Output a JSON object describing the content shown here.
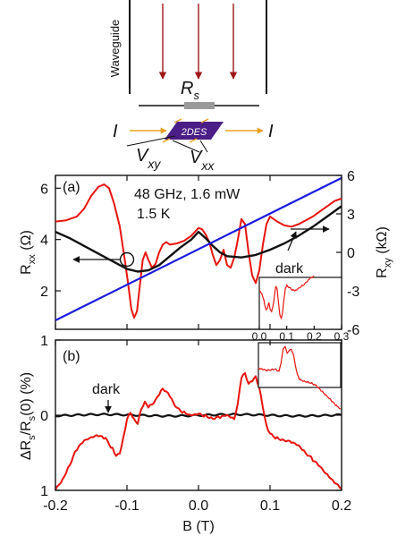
{
  "colors": {
    "measured": "#e8140e",
    "dark": "#111111",
    "hall": "#1a1adf",
    "waveguide_arrow": "#a01818",
    "sample": "#4b1d86",
    "sample_label": "#ffffff",
    "current_arrow": "#e8a020",
    "resistor": "#9a9a9a",
    "axis": "#111111"
  },
  "schematic": {
    "waveguide_label": "Waveguide",
    "resistor_label_main": "R",
    "resistor_label_sub": "s",
    "current_left": "I",
    "current_right": "I",
    "sample_label": "2DES",
    "vxy_main": "V",
    "vxy_sub": "xy",
    "vxx_main": "V",
    "vxx_sub": "xx"
  },
  "panel_a": {
    "label": "(a)",
    "annotation_power": "48 GHz, 1.6 mW",
    "annotation_temp": "1.5 K",
    "dark_label": "dark",
    "ylabel_left_main": "R",
    "ylabel_left_sub": "xx",
    "ylabel_left_unit": " (Ω)",
    "ylabel_right_main": "R",
    "ylabel_right_sub": "xy",
    "ylabel_right_unit": " (kΩ)",
    "left_ticks": [
      "2",
      "4",
      "6"
    ],
    "right_ticks": [
      "-6",
      "-3",
      "0",
      "3",
      "6"
    ],
    "inset_ticks": [
      "0.0",
      "0.1",
      "0.2",
      "0.3"
    ]
  },
  "panel_b": {
    "label": "(b)",
    "dark_label": "dark",
    "ylabel_parts": [
      "ΔR",
      "s",
      "/R",
      "s",
      "(0) (%)"
    ],
    "y_ticks": [
      "1",
      "0",
      "1"
    ]
  },
  "xaxis": {
    "label": "B (T)",
    "ticks": [
      "-0.2",
      "-0.1",
      "0.0",
      "0.1",
      "0.2"
    ]
  },
  "chart_data": [
    {
      "type": "line",
      "panel": "(a)",
      "xlim": [
        -0.2,
        0.2
      ],
      "ylim_left": [
        0.5,
        6.5
      ],
      "ylim_right": [
        -6,
        6
      ],
      "series": [
        {
          "axis": "left",
          "x": [
            -0.2,
            -0.185,
            -0.17,
            -0.16,
            -0.15,
            -0.14,
            -0.132,
            -0.125,
            -0.118,
            -0.11,
            -0.103,
            -0.098,
            -0.094,
            -0.09,
            -0.086,
            -0.082,
            -0.078,
            -0.074,
            -0.07,
            -0.065,
            -0.06,
            -0.055,
            -0.05,
            -0.045,
            -0.04,
            -0.03,
            -0.02,
            -0.01,
            0.0,
            0.005,
            0.01,
            0.015,
            0.02,
            0.025,
            0.03,
            0.035,
            0.04,
            0.045,
            0.05,
            0.055,
            0.06,
            0.065,
            0.07,
            0.075,
            0.08,
            0.085,
            0.09,
            0.095,
            0.1,
            0.11,
            0.12,
            0.13,
            0.14,
            0.15,
            0.16,
            0.17,
            0.18,
            0.19,
            0.2
          ],
          "y": [
            4.7,
            4.75,
            4.9,
            5.2,
            5.7,
            6.05,
            6.15,
            6.0,
            5.4,
            4.5,
            3.2,
            2.2,
            1.3,
            0.95,
            1.2,
            2.2,
            3.2,
            3.5,
            3.2,
            2.9,
            3.05,
            3.5,
            3.8,
            3.9,
            3.8,
            3.85,
            3.95,
            4.15,
            4.45,
            4.4,
            4.2,
            3.9,
            3.4,
            3.0,
            3.2,
            3.6,
            3.0,
            2.9,
            3.3,
            4.0,
            4.8,
            4.6,
            3.5,
            2.6,
            2.3,
            2.8,
            3.8,
            4.6,
            4.9,
            4.7,
            4.55,
            4.5,
            4.6,
            4.75,
            4.9,
            5.1,
            5.3,
            5.5,
            5.6
          ]
        },
        {
          "name": "dark",
          "axis": "left",
          "x": [
            -0.2,
            -0.18,
            -0.16,
            -0.14,
            -0.12,
            -0.1,
            -0.085,
            -0.07,
            -0.055,
            -0.04,
            -0.025,
            -0.01,
            0.0,
            0.01,
            0.02,
            0.03,
            0.04,
            0.06,
            0.08,
            0.1,
            0.12,
            0.14,
            0.16,
            0.18,
            0.2
          ],
          "y": [
            4.3,
            4.05,
            3.75,
            3.45,
            3.15,
            2.85,
            2.75,
            2.8,
            3.0,
            3.35,
            3.7,
            4.0,
            4.3,
            4.05,
            3.75,
            3.5,
            3.35,
            3.3,
            3.4,
            3.6,
            3.85,
            4.15,
            4.5,
            4.9,
            5.3
          ]
        },
        {
          "axis": "right",
          "x": [
            -0.2,
            0.2
          ],
          "y": [
            -5.3,
            5.8
          ]
        }
      ]
    },
    {
      "type": "line",
      "panel": "(b)",
      "xlim": [
        -0.2,
        0.2
      ],
      "ylim": [
        -1,
        1
      ],
      "series": [
        {
          "x": [
            -0.2,
            -0.19,
            -0.18,
            -0.17,
            -0.16,
            -0.15,
            -0.14,
            -0.13,
            -0.12,
            -0.115,
            -0.11,
            -0.105,
            -0.1,
            -0.095,
            -0.09,
            -0.085,
            -0.08,
            -0.075,
            -0.07,
            -0.065,
            -0.06,
            -0.055,
            -0.05,
            -0.045,
            -0.04,
            -0.035,
            -0.03,
            -0.02,
            -0.01,
            0.0,
            0.01,
            0.02,
            0.03,
            0.04,
            0.05,
            0.055,
            0.06,
            0.065,
            0.07,
            0.075,
            0.08,
            0.085,
            0.09,
            0.095,
            0.1,
            0.11,
            0.12,
            0.13,
            0.14,
            0.15,
            0.16,
            0.17,
            0.18,
            0.19,
            0.2
          ],
          "y": [
            -0.98,
            -0.85,
            -0.65,
            -0.45,
            -0.35,
            -0.3,
            -0.28,
            -0.32,
            -0.45,
            -0.55,
            -0.5,
            -0.3,
            -0.05,
            0.05,
            -0.05,
            -0.1,
            0.1,
            0.18,
            0.12,
            0.15,
            0.2,
            0.28,
            0.35,
            0.3,
            0.25,
            0.15,
            0.08,
            0.03,
            0.0,
            0.02,
            0.0,
            -0.03,
            -0.02,
            0.0,
            -0.05,
            0.15,
            0.5,
            0.55,
            0.4,
            0.45,
            0.5,
            0.35,
            0.1,
            -0.15,
            -0.25,
            -0.3,
            -0.32,
            -0.35,
            -0.4,
            -0.5,
            -0.6,
            -0.7,
            -0.8,
            -0.9,
            -0.98
          ]
        },
        {
          "name": "dark",
          "x": [
            -0.2,
            0.2
          ],
          "y": [
            0,
            0
          ]
        }
      ]
    }
  ]
}
